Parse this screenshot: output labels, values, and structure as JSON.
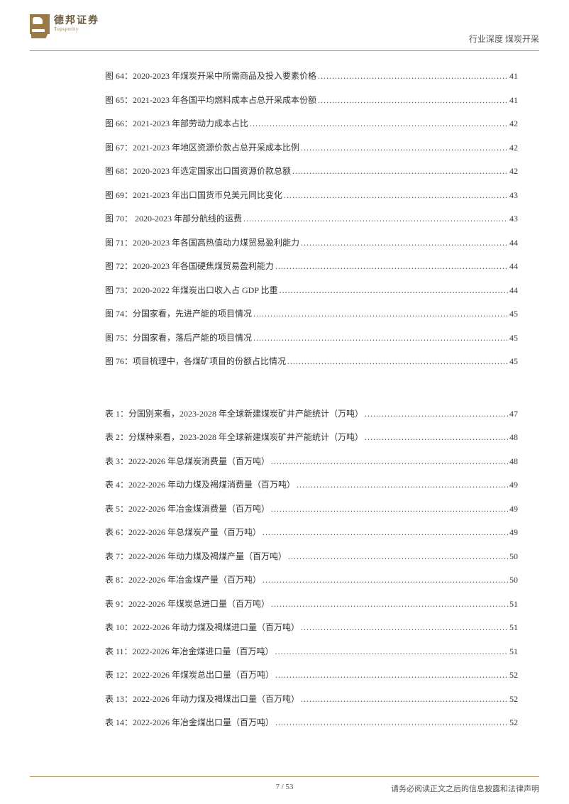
{
  "header": {
    "logo_cn": "德邦证券",
    "logo_en": "Topsperity",
    "right_text": "行业深度   煤炭开采"
  },
  "colors": {
    "rule": "#b8935f",
    "logo": "#9b7a4a",
    "text": "#333333",
    "background": "#ffffff"
  },
  "figures": [
    {
      "label": "图 64：2020-2023 年煤炭开采中所需商品及投入要素价格",
      "page": "41"
    },
    {
      "label": "图 65：2021-2023 年各国平均燃料成本占总开采成本份额",
      "page": "41"
    },
    {
      "label": "图 66：2021-2023 年部劳动力成本占比",
      "page": "42"
    },
    {
      "label": "图 67：2021-2023 年地区资源价款占总开采成本比例",
      "page": "42"
    },
    {
      "label": "图 68：2020-2023 年选定国家出口国资源价款总额",
      "page": "42"
    },
    {
      "label": "图 69：2021-2023 年出口国货币兑美元同比变化",
      "page": "43"
    },
    {
      "label": "图 70：   2020-2023  年部分航线的运费",
      "page": "43"
    },
    {
      "label": "图 71：2020-2023 年各国高热值动力煤贸易盈利能力",
      "page": "44"
    },
    {
      "label": "图 72：2020-2023 年各国硬焦煤贸易盈利能力",
      "page": "44"
    },
    {
      "label": "图 73：2020-2022 年煤炭出口收入占 GDP 比重",
      "page": "44"
    },
    {
      "label": "图 74：分国家看，先进产能的项目情况",
      "page": "45"
    },
    {
      "label": "图 75：分国家看，落后产能的项目情况",
      "page": "45"
    },
    {
      "label": "图 76：项目梳理中，各煤矿项目的份额占比情况",
      "page": "45"
    }
  ],
  "tables": [
    {
      "label": "表 1：分国别来看，2023-2028 年全球新建煤炭矿井产能统计（万吨）",
      "page": "47"
    },
    {
      "label": "表 2：分煤种来看，2023-2028 年全球新建煤炭矿井产能统计（万吨）",
      "page": "48"
    },
    {
      "label": "表 3：2022-2026 年总煤炭消费量（百万吨）",
      "page": "48"
    },
    {
      "label": "表 4：2022-2026 年动力煤及褐煤消费量（百万吨）",
      "page": "49"
    },
    {
      "label": "表 5：2022-2026 年冶金煤消费量（百万吨）",
      "page": "49"
    },
    {
      "label": "表 6：2022-2026 年总煤炭产量（百万吨）",
      "page": "49"
    },
    {
      "label": "表 7：2022-2026 年动力煤及褐煤产量（百万吨）",
      "page": "50"
    },
    {
      "label": "表 8：2022-2026 年冶金煤产量（百万吨）",
      "page": "50"
    },
    {
      "label": "表 9：2022-2026 年煤炭总进口量（百万吨）",
      "page": "51"
    },
    {
      "label": "表 10：2022-2026 年动力煤及褐煤进口量（百万吨）",
      "page": "51"
    },
    {
      "label": "表 11：2022-2026 年冶金煤进口量（百万吨）",
      "page": "51"
    },
    {
      "label": "表 12：2022-2026 年煤炭总出口量（百万吨）",
      "page": "52"
    },
    {
      "label": "表 13：2022-2026 年动力煤及褐煤出口量（百万吨）",
      "page": "52"
    },
    {
      "label": "表 14：2022-2026 年冶金煤出口量（百万吨）",
      "page": "52"
    }
  ],
  "footer": {
    "page": "7 / 53",
    "disclaimer": "请务必阅读正文之后的信息披露和法律声明"
  }
}
